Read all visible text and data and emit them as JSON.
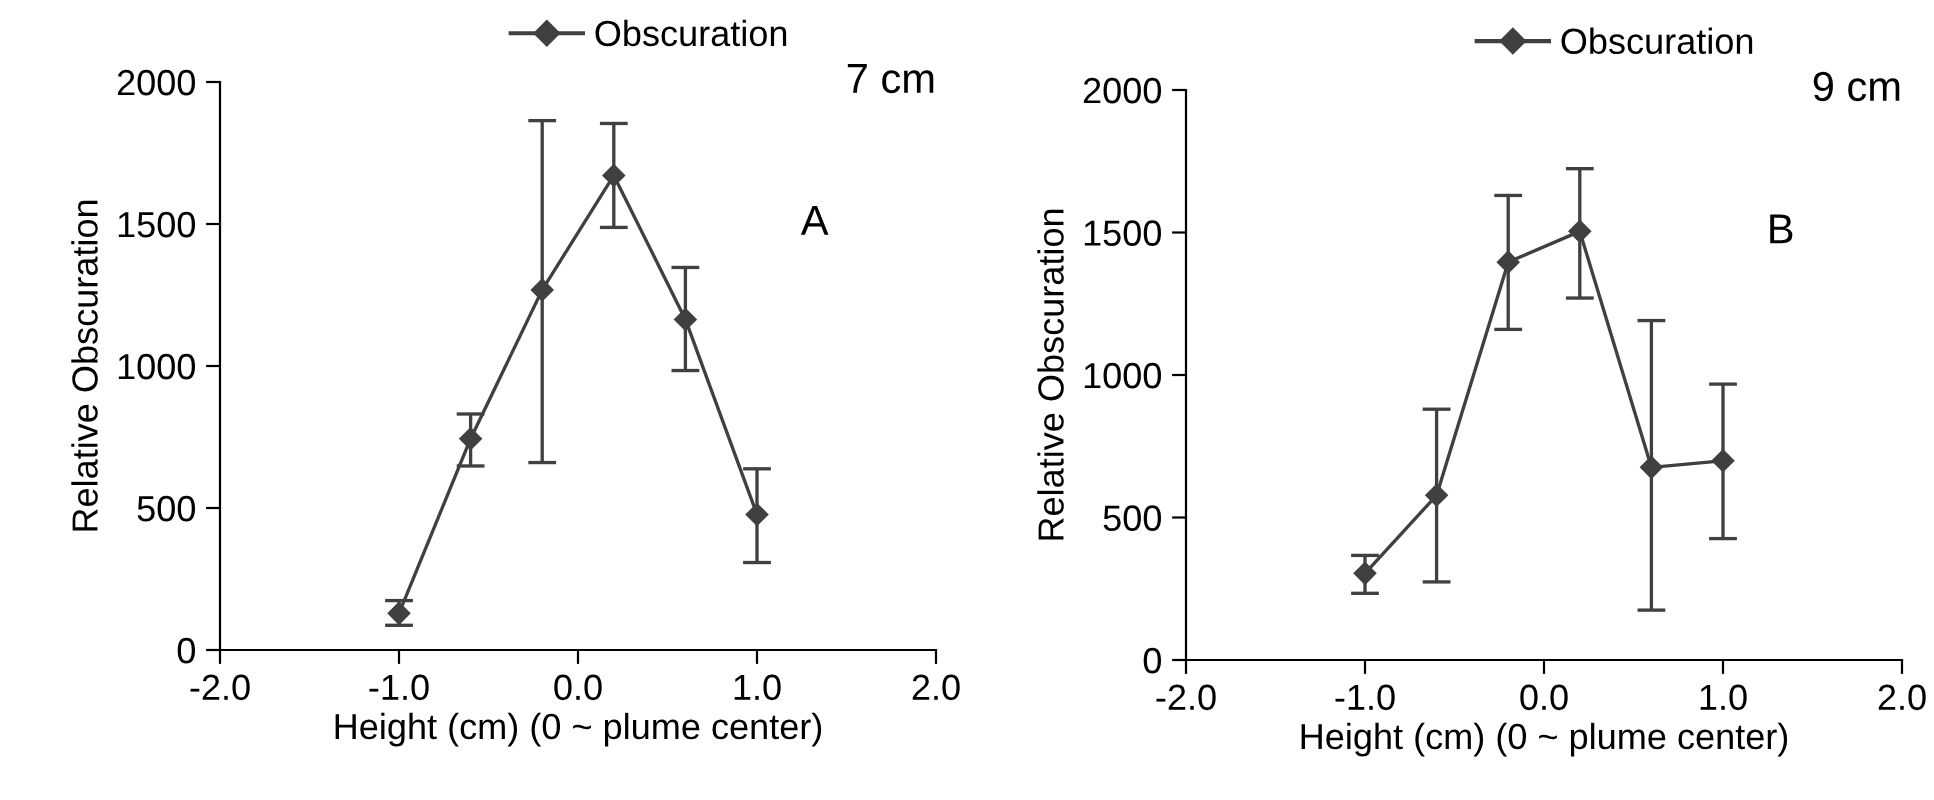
{
  "chart_data": [
    {
      "type": "line",
      "xlabel": "Height (cm) (0 ~ plume center)",
      "ylabel": "Relative Obscuration",
      "annotations": [
        "7 cm",
        "A"
      ],
      "x": [
        -1.0,
        -0.6,
        -0.2,
        0.2,
        0.6,
        1.0
      ],
      "series": [
        {
          "name": "Obscuration",
          "color": "#404040",
          "values": [
            129,
            744,
            1268,
            1671,
            1164,
            477
          ],
          "errors": [
            [
              87,
              174
            ],
            [
              648,
              831
            ],
            [
              660,
              1864
            ],
            [
              1488,
              1854
            ],
            [
              984,
              1347
            ],
            [
              308,
              638
            ]
          ]
        }
      ],
      "xlim": [
        -2.0,
        2.0
      ],
      "xticks": [
        {
          "value": -2,
          "label": "-2.0"
        },
        {
          "value": -1,
          "label": "-1.0"
        },
        {
          "value": 0,
          "label": "0.0"
        },
        {
          "value": 1,
          "label": "1.0"
        },
        {
          "value": 2,
          "label": "2.0"
        }
      ],
      "ylim": [
        0,
        2000
      ],
      "yticks": [
        0,
        500,
        1000,
        1500,
        2000
      ],
      "marker": "diamond",
      "line_style": "solid",
      "grid": false,
      "legend": "top"
    },
    {
      "type": "line",
      "xlabel": "Height (cm) (0 ~ plume center)",
      "ylabel": "Relative Obscuration",
      "annotations": [
        "9 cm",
        "B"
      ],
      "x": [
        -1.0,
        -0.6,
        -0.2,
        0.2,
        0.6,
        1.0
      ],
      "series": [
        {
          "name": "Obscuration",
          "color": "#404040",
          "values": [
            304,
            578,
            1396,
            1504,
            676,
            699
          ],
          "errors": [
            [
              234,
              367
            ],
            [
              274,
              880
            ],
            [
              1160,
              1630
            ],
            [
              1270,
              1724
            ],
            [
              175,
              1191
            ],
            [
              426,
              968
            ]
          ]
        }
      ],
      "xlim": [
        -2.0,
        2.0
      ],
      "xticks": [
        {
          "value": -2,
          "label": "-2.0"
        },
        {
          "value": -1,
          "label": "-1.0"
        },
        {
          "value": 0,
          "label": "0.0"
        },
        {
          "value": 1,
          "label": "1.0"
        },
        {
          "value": 2,
          "label": "2.0"
        }
      ],
      "ylim": [
        0,
        2000
      ],
      "yticks": [
        0,
        500,
        1000,
        1500,
        2000
      ],
      "marker": "diamond",
      "line_style": "solid",
      "grid": false,
      "legend": "top"
    }
  ]
}
